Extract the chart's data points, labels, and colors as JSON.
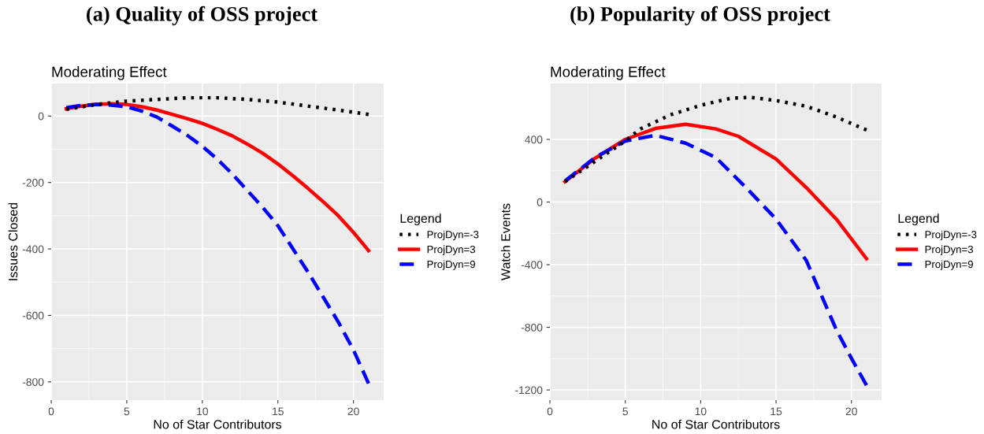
{
  "chart_data": [
    {
      "type": "line",
      "title": "(a) Quality of OSS project",
      "subtitle": "Moderating Effect",
      "xlabel": "No of Star Contributors",
      "ylabel": "Issues Closed",
      "legend_title": "Legend",
      "legend": "right",
      "grid": true,
      "xlim": [
        0,
        22
      ],
      "xticks": [
        0,
        5,
        10,
        15,
        20
      ],
      "ylim": [
        -855,
        98
      ],
      "yticks": [
        -800,
        -600,
        -400,
        -200,
        0
      ],
      "series": [
        {
          "name": "ProjDyn=-3",
          "color": "#000000",
          "line_style": "dotted",
          "x": [
            1,
            3,
            5,
            7,
            9,
            11,
            13,
            15,
            17,
            19,
            21
          ],
          "values": [
            20,
            35,
            45,
            50,
            55,
            55,
            50,
            42,
            30,
            18,
            5
          ]
        },
        {
          "name": "ProjDyn=3",
          "color": "#ff0000",
          "line_style": "solid",
          "x": [
            1,
            2,
            3,
            4,
            5,
            6,
            7,
            8,
            9,
            10,
            11,
            12,
            13,
            14,
            15,
            16,
            17,
            18,
            19,
            20,
            21
          ],
          "values": [
            22,
            30,
            35,
            37,
            35,
            28,
            18,
            5,
            -8,
            -22,
            -40,
            -60,
            -85,
            -112,
            -144,
            -180,
            -218,
            -258,
            -300,
            -350,
            -405
          ]
        },
        {
          "name": "ProjDyn=9",
          "color": "#0000ff",
          "line_style": "dashed",
          "x": [
            1,
            2,
            3,
            4,
            5,
            6,
            7,
            8,
            9,
            10,
            11,
            12,
            13,
            14,
            15,
            16,
            17,
            18,
            19,
            20,
            21
          ],
          "values": [
            25,
            32,
            35,
            33,
            28,
            15,
            -3,
            -30,
            -58,
            -91,
            -130,
            -175,
            -225,
            -275,
            -330,
            -400,
            -470,
            -545,
            -620,
            -704,
            -805
          ]
        }
      ]
    },
    {
      "type": "line",
      "title": "(b) Popularity of OSS project",
      "subtitle": "Moderating Effect",
      "xlabel": "No of Star Contributors",
      "ylabel": "Watch Events",
      "legend_title": "Legend",
      "legend": "right",
      "grid": true,
      "xlim": [
        0,
        22
      ],
      "xticks": [
        0,
        5,
        10,
        15,
        20
      ],
      "ylim": [
        -1265,
        757
      ],
      "yticks": [
        -1200,
        -800,
        -400,
        0,
        400
      ],
      "series": [
        {
          "name": "ProjDyn=-3",
          "color": "#000000",
          "line_style": "dotted",
          "x": [
            1,
            3,
            5,
            6,
            8,
            10,
            12,
            13.3,
            15,
            17,
            19,
            21
          ],
          "values": [
            130,
            260,
            390,
            467,
            557,
            618,
            663,
            669,
            648,
            612,
            543,
            460
          ]
        },
        {
          "name": "ProjDyn=3",
          "color": "#ff0000",
          "line_style": "solid",
          "x": [
            1,
            3,
            5,
            7,
            9,
            11,
            12.5,
            15,
            17,
            19,
            21
          ],
          "values": [
            130,
            280,
            400,
            470,
            497,
            467,
            420,
            275,
            93,
            -109,
            -362
          ]
        },
        {
          "name": "ProjDyn=9",
          "color": "#0000ff",
          "line_style": "dashed",
          "x": [
            1,
            3,
            5,
            7,
            9,
            11,
            13,
            15,
            17,
            18,
            19,
            20,
            21
          ],
          "values": [
            135,
            285,
            390,
            426,
            376,
            285,
            93,
            -109,
            -372,
            -594,
            -816,
            -998,
            -1170
          ]
        }
      ]
    }
  ]
}
